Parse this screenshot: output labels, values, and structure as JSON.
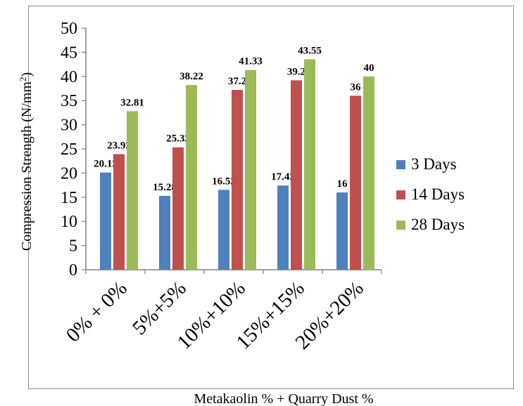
{
  "chart_data": {
    "type": "bar",
    "title": "",
    "xlabel": "Metakaolin % + Quarry Dust %",
    "ylabel": "Compression Strength (N/mm",
    "ylabel_sup": "2",
    "ylabel_close": ")",
    "ylim": [
      0,
      50
    ],
    "yticks": [
      0,
      5,
      10,
      15,
      20,
      25,
      30,
      35,
      40,
      45,
      50
    ],
    "yticks_labels": [
      "0",
      "5",
      "10",
      "15",
      "20",
      "25",
      "30",
      "35",
      "40",
      "45",
      "50"
    ],
    "grid": false,
    "legend_position": "right",
    "categories": [
      "0% + 0%",
      "5%+5%",
      "10%+10%",
      "15%+15%",
      "20%+20%"
    ],
    "series": [
      {
        "name": "3 Days",
        "color": "#4f81bd",
        "values": [
          20.12,
          15.28,
          16.53,
          17.42,
          16
        ],
        "labels": [
          "20.12",
          "15.28",
          "16.53",
          "17.42",
          "16"
        ]
      },
      {
        "name": "14 Days",
        "color": "#c0504d",
        "values": [
          23.92,
          25.33,
          37.2,
          39.2,
          36
        ],
        "labels": [
          "23.92",
          "25.33",
          "37.2",
          "39.2",
          "36"
        ]
      },
      {
        "name": "28 Days",
        "color": "#9bbb59",
        "values": [
          32.81,
          38.22,
          41.33,
          43.55,
          40
        ],
        "labels": [
          "32.81",
          "38.22",
          "41.33",
          "43.55",
          "40"
        ]
      }
    ]
  }
}
